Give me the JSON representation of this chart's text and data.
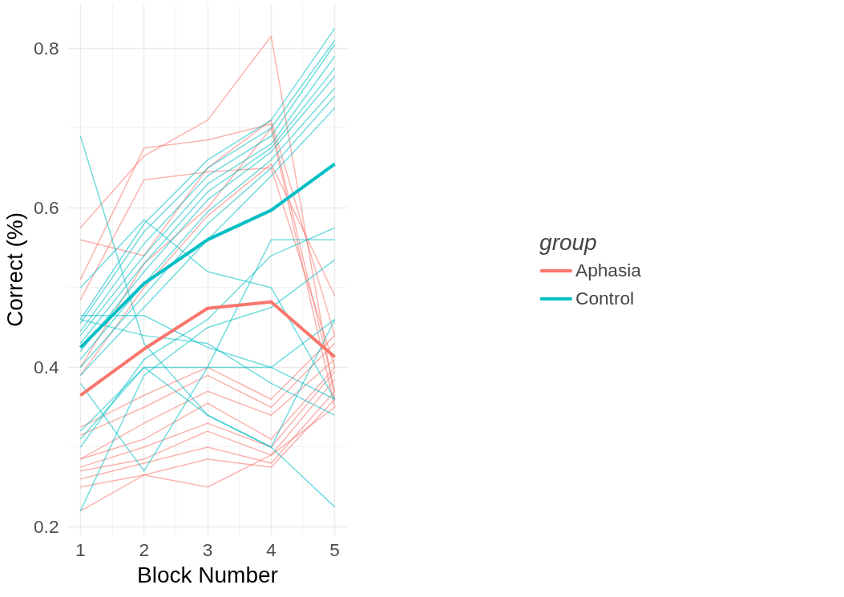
{
  "chart_data": {
    "type": "line",
    "xlabel": "Block Number",
    "ylabel": "Correct (%)",
    "legend_title": "group",
    "legend": "right",
    "grid": true,
    "x": [
      1,
      2,
      3,
      4,
      5
    ],
    "xlim": [
      0.8,
      5.2
    ],
    "xticks": [
      1,
      2,
      3,
      4,
      5
    ],
    "ylim": [
      0.19,
      0.855
    ],
    "yticks": [
      0.2,
      0.4,
      0.6,
      0.8
    ],
    "series": [
      {
        "color": "#f8766d",
        "values": [
          0.575,
          0.665,
          0.71,
          0.815,
          0.36
        ]
      },
      {
        "color": "#f8766d",
        "values": [
          0.51,
          0.675,
          0.685,
          0.705,
          0.37
        ]
      },
      {
        "color": "#f8766d",
        "values": [
          0.56,
          0.54,
          0.65,
          0.71,
          0.44
        ]
      },
      {
        "color": "#f8766d",
        "values": [
          0.485,
          0.635,
          0.645,
          0.65,
          0.4
        ]
      },
      {
        "color": "#f8766d",
        "values": [
          0.4,
          0.53,
          0.6,
          0.7,
          0.35
        ]
      },
      {
        "color": "#f8766d",
        "values": [
          0.39,
          0.5,
          0.59,
          0.655,
          0.49
        ]
      },
      {
        "color": "#f8766d",
        "values": [
          0.325,
          0.365,
          0.4,
          0.36,
          0.44
        ]
      },
      {
        "color": "#f8766d",
        "values": [
          0.315,
          0.35,
          0.39,
          0.35,
          0.43
        ]
      },
      {
        "color": "#f8766d",
        "values": [
          0.285,
          0.33,
          0.37,
          0.34,
          0.41
        ]
      },
      {
        "color": "#f8766d",
        "values": [
          0.285,
          0.31,
          0.355,
          0.31,
          0.4
        ]
      },
      {
        "color": "#f8766d",
        "values": [
          0.275,
          0.3,
          0.33,
          0.3,
          0.395
        ]
      },
      {
        "color": "#f8766d",
        "values": [
          0.27,
          0.285,
          0.32,
          0.29,
          0.385
        ]
      },
      {
        "color": "#f8766d",
        "values": [
          0.26,
          0.28,
          0.3,
          0.28,
          0.37
        ]
      },
      {
        "color": "#f8766d",
        "values": [
          0.25,
          0.265,
          0.285,
          0.275,
          0.36
        ]
      },
      {
        "color": "#f8766d",
        "values": [
          0.22,
          0.265,
          0.25,
          0.29,
          0.35
        ]
      },
      {
        "color": "#00bfc4",
        "values": [
          0.69,
          0.43,
          0.34,
          0.3,
          0.225
        ]
      },
      {
        "color": "#00bfc4",
        "values": [
          0.5,
          0.585,
          0.52,
          0.5,
          0.36
        ]
      },
      {
        "color": "#00bfc4",
        "values": [
          0.46,
          0.58,
          0.66,
          0.71,
          0.825
        ]
      },
      {
        "color": "#00bfc4",
        "values": [
          0.455,
          0.57,
          0.65,
          0.7,
          0.81
        ]
      },
      {
        "color": "#00bfc4",
        "values": [
          0.445,
          0.555,
          0.64,
          0.69,
          0.805
        ]
      },
      {
        "color": "#00bfc4",
        "values": [
          0.44,
          0.54,
          0.63,
          0.68,
          0.79
        ]
      },
      {
        "color": "#00bfc4",
        "values": [
          0.43,
          0.53,
          0.62,
          0.675,
          0.775
        ]
      },
      {
        "color": "#00bfc4",
        "values": [
          0.42,
          0.52,
          0.61,
          0.67,
          0.765
        ]
      },
      {
        "color": "#00bfc4",
        "values": [
          0.41,
          0.505,
          0.595,
          0.66,
          0.75
        ]
      },
      {
        "color": "#00bfc4",
        "values": [
          0.4,
          0.49,
          0.58,
          0.65,
          0.74
        ]
      },
      {
        "color": "#00bfc4",
        "values": [
          0.39,
          0.475,
          0.56,
          0.64,
          0.725
        ]
      },
      {
        "color": "#00bfc4",
        "values": [
          0.465,
          0.465,
          0.425,
          0.4,
          0.46
        ]
      },
      {
        "color": "#00bfc4",
        "values": [
          0.46,
          0.44,
          0.43,
          0.38,
          0.34
        ]
      },
      {
        "color": "#00bfc4",
        "values": [
          0.31,
          0.4,
          0.4,
          0.56,
          0.56
        ]
      },
      {
        "color": "#00bfc4",
        "values": [
          0.3,
          0.41,
          0.46,
          0.54,
          0.575
        ]
      },
      {
        "color": "#00bfc4",
        "values": [
          0.22,
          0.39,
          0.45,
          0.475,
          0.535
        ]
      },
      {
        "color": "#00bfc4",
        "values": [
          0.38,
          0.27,
          0.4,
          0.4,
          0.36
        ]
      },
      {
        "color": "#00bfc4",
        "values": [
          0.32,
          0.4,
          0.34,
          0.3,
          0.46
        ]
      },
      {
        "name": "Aphasia",
        "color": "#f8766d",
        "values": [
          0.365,
          0.423,
          0.474,
          0.482,
          0.413
        ]
      },
      {
        "name": "Control",
        "color": "#00bfc4",
        "values": [
          0.425,
          0.505,
          0.56,
          0.597,
          0.655
        ]
      }
    ]
  }
}
